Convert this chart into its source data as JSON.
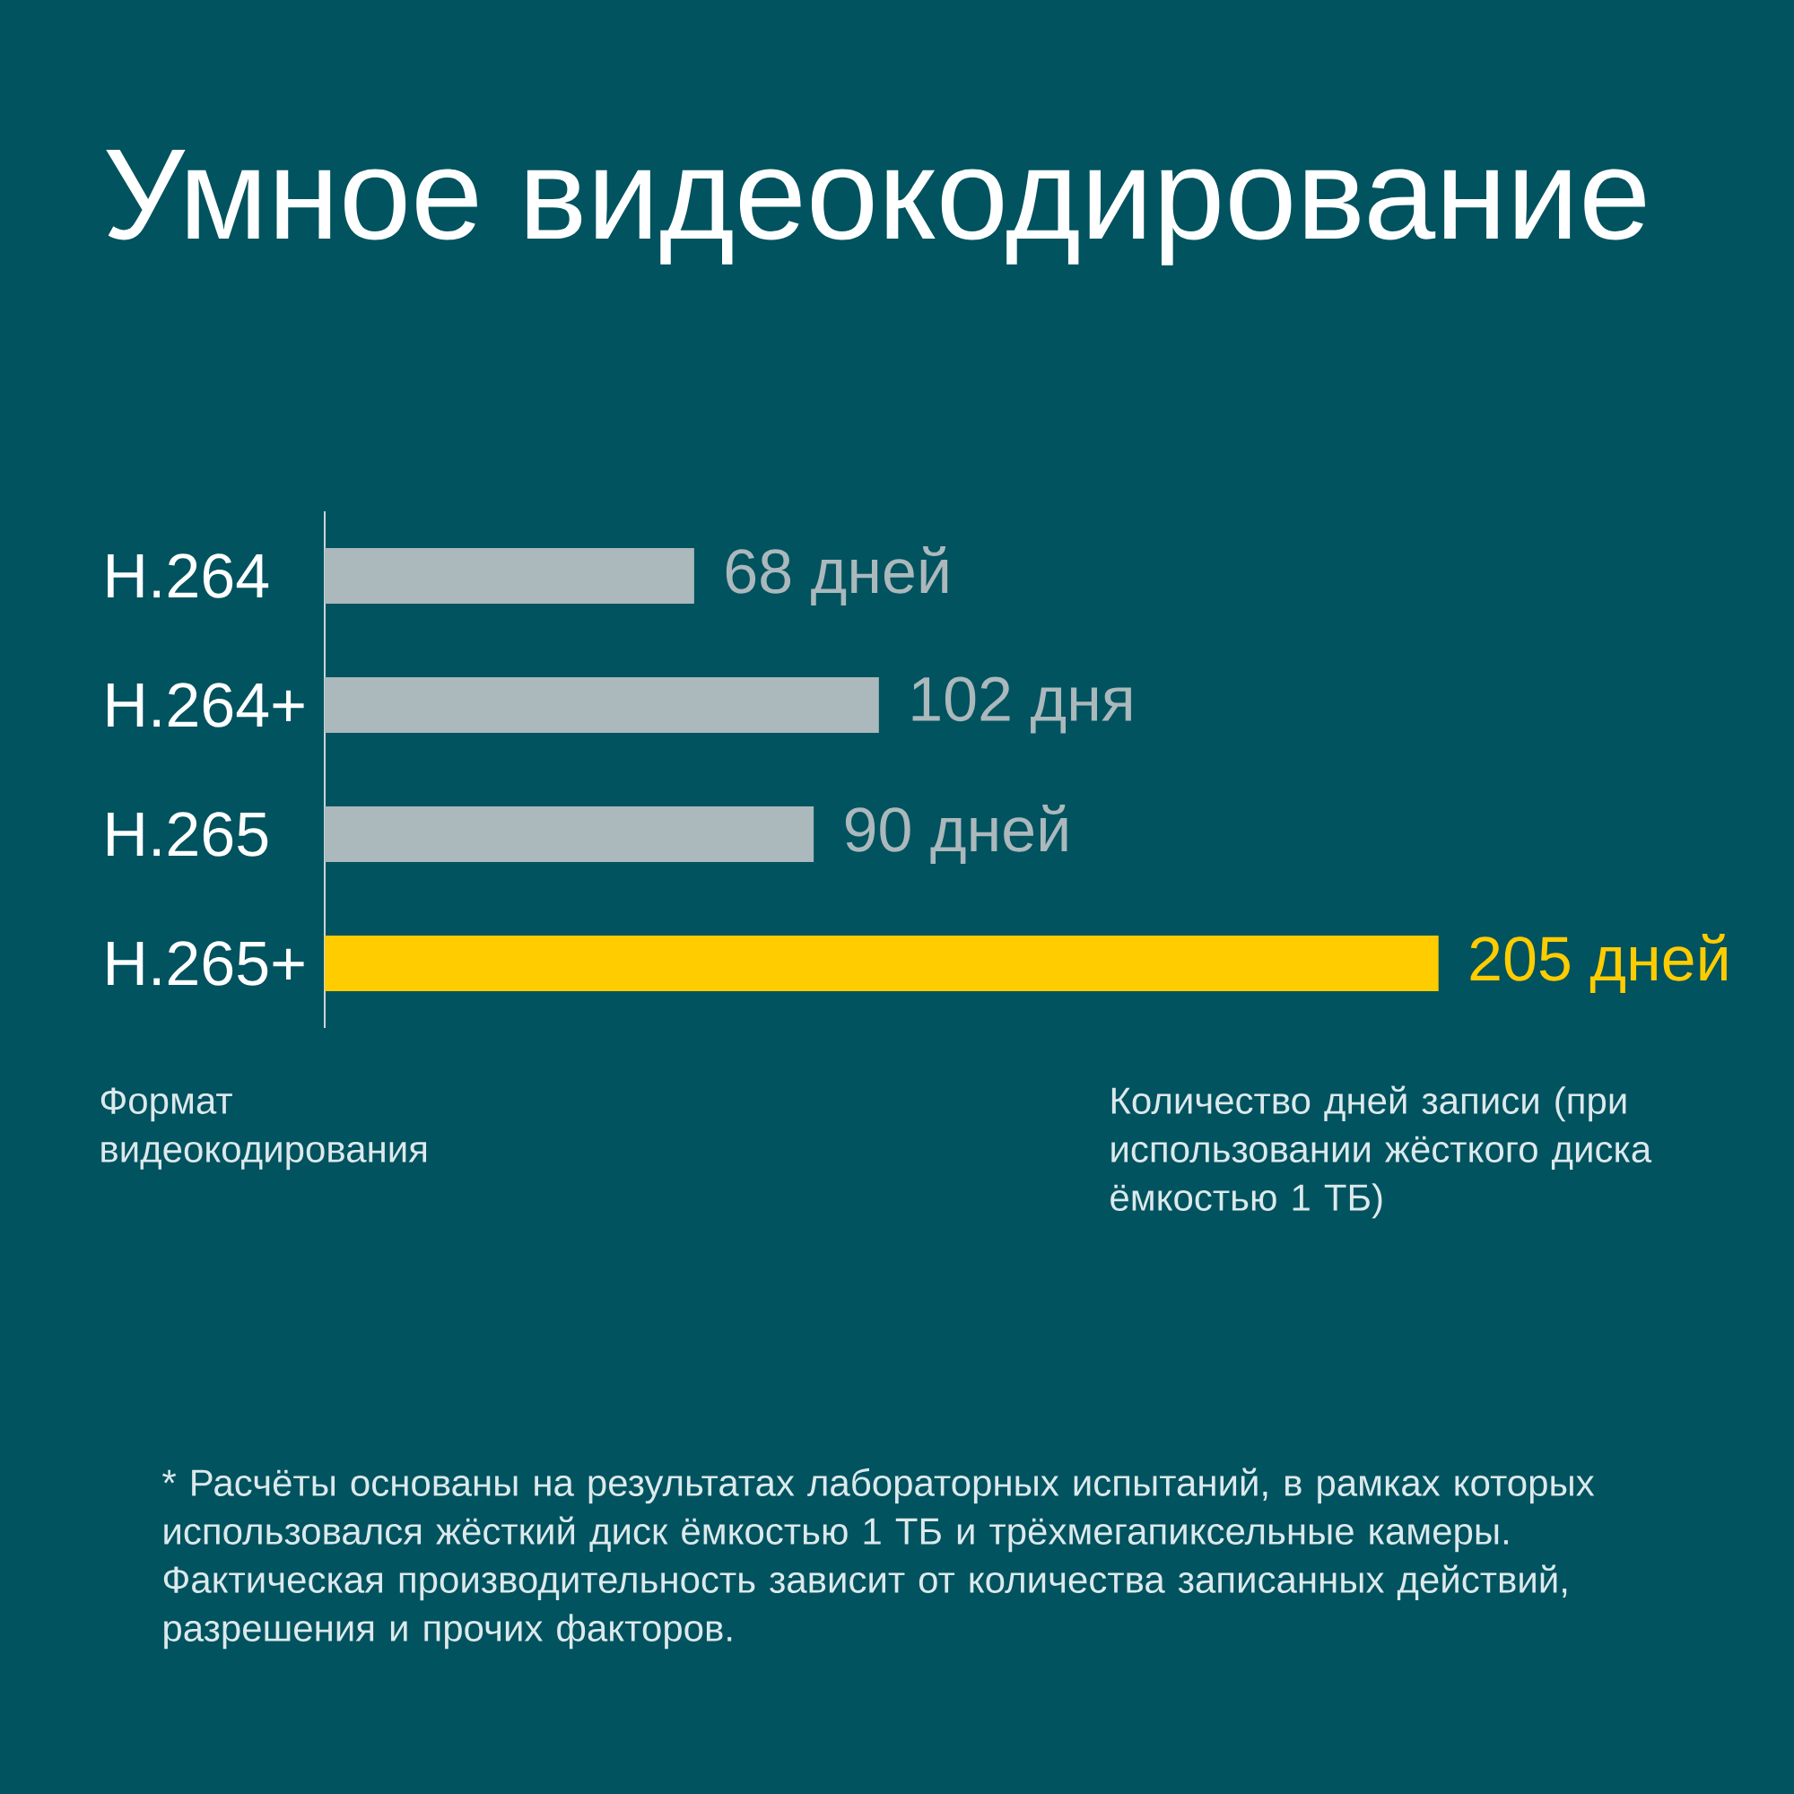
{
  "chart_data": {
    "type": "bar",
    "orientation": "horizontal",
    "title": "Умное видеокодирование",
    "categories": [
      "H.264",
      "H.264+",
      "H.265",
      "H.265+"
    ],
    "values": [
      68,
      102,
      90,
      205
    ],
    "colors": [
      "#abb8bc",
      "#abb8bc",
      "#abb8bc",
      "#ffcc00"
    ],
    "value_labels": [
      "68 дней",
      "102 дня",
      "90 дней",
      "205 дней"
    ],
    "ylabel": "Формат видеокодирования",
    "xlabel": "Количество дней записи (при использовании жёсткого диска ёмкостью 1 ТБ)",
    "annotations": [
      "* Расчёты основаны на результатах лабораторных испытаний, в рамках которых использовался жёсткий диск ёмкостью 1 ТБ и трёхмегапиксельные камеры. Фактическая производительность зависит от количества записанных действий, разрешения и прочих факторов."
    ]
  }
}
